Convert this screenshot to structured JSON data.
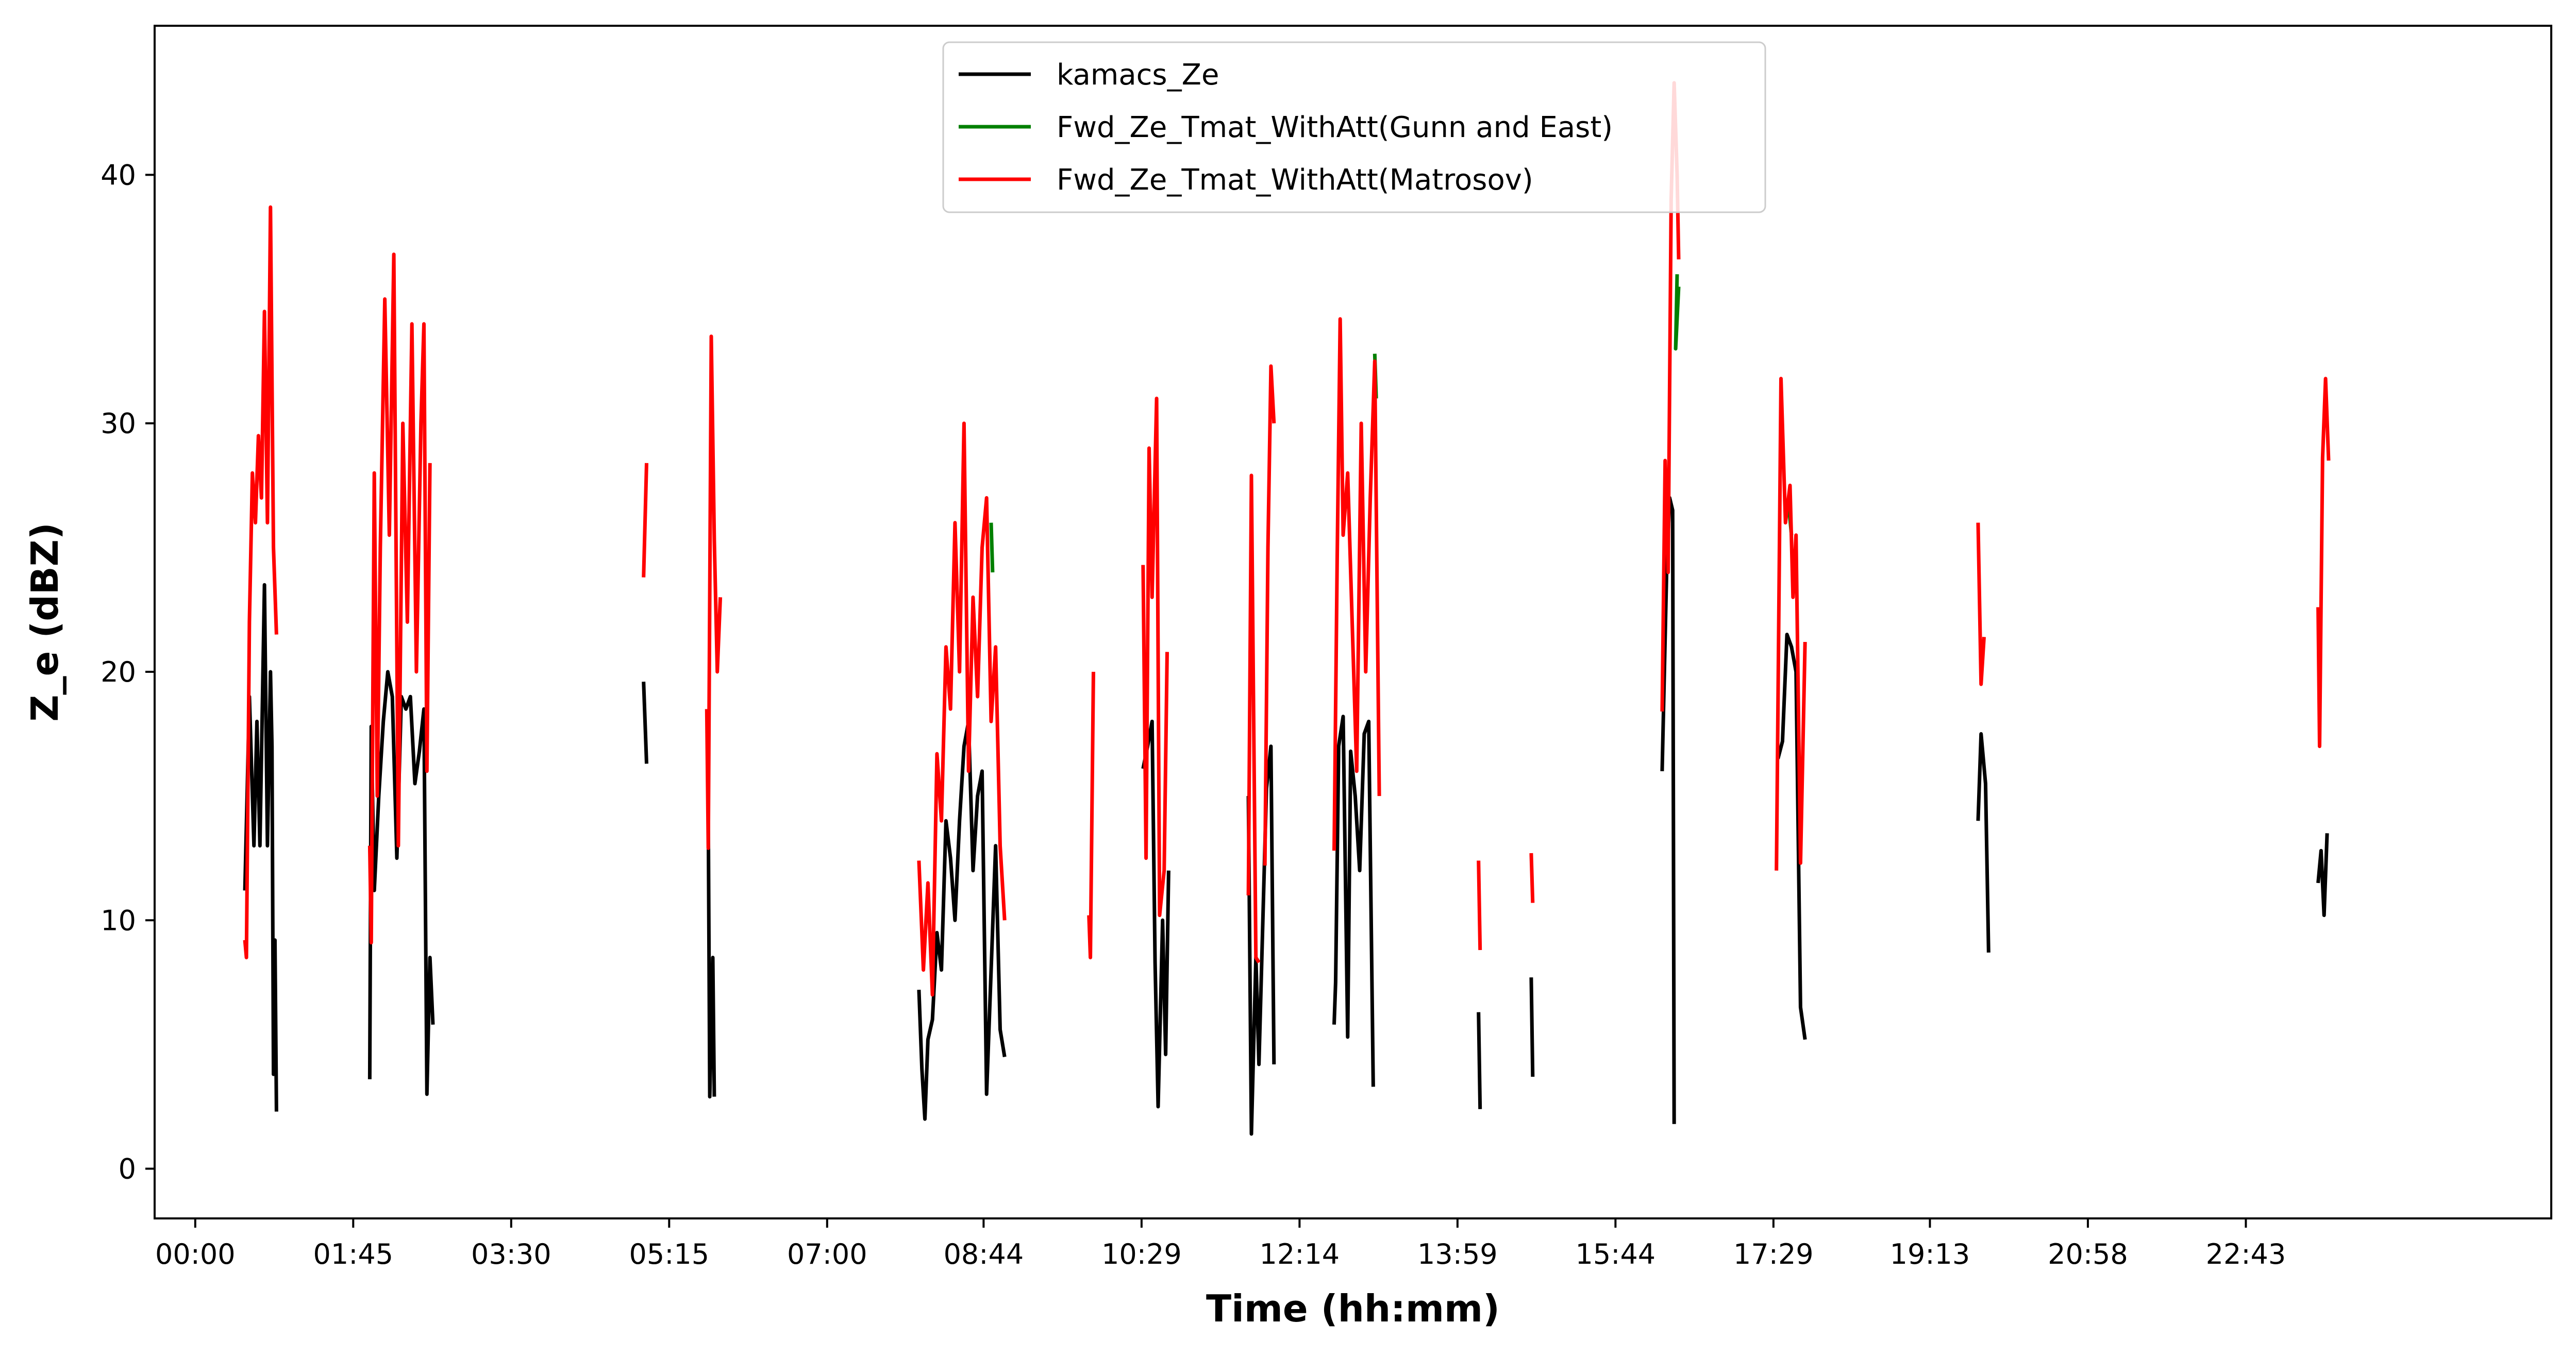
{
  "chart_data": {
    "type": "line",
    "title": "",
    "xlabel": "Time (hh:mm)",
    "ylabel": "Z_e (dBZ)",
    "xlim": [
      "-00:27",
      "26:06"
    ],
    "ylim": [
      -2,
      46
    ],
    "grid": false,
    "legend_position": "top-center",
    "x_ticks": [
      "00:00",
      "01:45",
      "03:30",
      "05:15",
      "07:00",
      "08:44",
      "10:29",
      "12:14",
      "13:59",
      "15:44",
      "17:29",
      "19:13",
      "20:58",
      "22:43"
    ],
    "y_ticks": [
      0,
      10,
      20,
      30,
      40
    ],
    "series": [
      {
        "name": "kamacs_Ze",
        "color": "#000000",
        "segments": [
          [
            [
              "00:33",
              11.2
            ],
            [
              "00:36",
              19
            ],
            [
              "00:39",
              13
            ],
            [
              "00:41",
              18
            ],
            [
              "00:43",
              13
            ],
            [
              "00:46",
              23.5
            ],
            [
              "00:48",
              13
            ],
            [
              "00:50",
              20
            ],
            [
              "00:51",
              17
            ],
            [
              "00:52",
              3.8
            ],
            [
              "00:53",
              9.2
            ],
            [
              "00:54",
              2.3
            ]
          ],
          [
            [
              "01:56",
              3.6
            ],
            [
              "01:57",
              17.8
            ],
            [
              "01:59",
              11.2
            ],
            [
              "02:02",
              15
            ],
            [
              "02:05",
              18
            ],
            [
              "02:08",
              20
            ],
            [
              "02:11",
              19
            ],
            [
              "02:14",
              12.5
            ],
            [
              "02:17",
              19
            ],
            [
              "02:20",
              18.5
            ],
            [
              "02:23",
              19
            ],
            [
              "02:26",
              15.5
            ],
            [
              "02:29",
              16.8
            ],
            [
              "02:32",
              18.5
            ],
            [
              "02:34",
              3
            ],
            [
              "02:36",
              8.5
            ],
            [
              "02:38",
              5.8
            ]
          ],
          [
            [
              "04:58",
              19.6
            ],
            [
              "05:00",
              16.3
            ]
          ],
          [
            [
              "05:41",
              14.3
            ],
            [
              "05:42",
              2.9
            ],
            [
              "05:44",
              8.5
            ],
            [
              "05:45",
              2.9
            ]
          ],
          [
            [
              "08:01",
              7.2
            ],
            [
              "08:03",
              4
            ],
            [
              "08:05",
              2
            ],
            [
              "08:07",
              5.2
            ],
            [
              "08:10",
              6
            ],
            [
              "08:13",
              9.5
            ],
            [
              "08:16",
              8
            ],
            [
              "08:19",
              14
            ],
            [
              "08:22",
              12.5
            ],
            [
              "08:25",
              10
            ],
            [
              "08:28",
              14
            ],
            [
              "08:31",
              17
            ],
            [
              "08:34",
              18
            ],
            [
              "08:37",
              12
            ],
            [
              "08:40",
              15
            ],
            [
              "08:43",
              16
            ],
            [
              "08:46",
              3
            ],
            [
              "08:49",
              8
            ],
            [
              "08:52",
              13
            ],
            [
              "08:55",
              5.6
            ],
            [
              "08:58",
              4.5
            ]
          ],
          [
            [
              "10:30",
              16.1
            ],
            [
              "10:33",
              17
            ],
            [
              "10:36",
              18
            ],
            [
              "10:38",
              8.3
            ],
            [
              "10:40",
              2.5
            ],
            [
              "10:43",
              10
            ],
            [
              "10:45",
              4.6
            ],
            [
              "10:47",
              12
            ]
          ],
          [
            [
              "11:40",
              15
            ],
            [
              "11:42",
              1.4
            ],
            [
              "11:45",
              8.5
            ],
            [
              "11:47",
              4.2
            ],
            [
              "11:52",
              15.3
            ],
            [
              "11:55",
              17
            ],
            [
              "11:57",
              4.2
            ]
          ],
          [
            [
              "12:37",
              5.8
            ],
            [
              "12:38",
              7.5
            ],
            [
              "12:40",
              17
            ],
            [
              "12:43",
              18.2
            ],
            [
              "12:46",
              5.3
            ],
            [
              "12:48",
              16.8
            ],
            [
              "12:51",
              15
            ],
            [
              "12:54",
              12
            ],
            [
              "12:57",
              17.5
            ],
            [
              "13:00",
              18
            ],
            [
              "13:03",
              3.3
            ]
          ],
          [
            [
              "14:13",
              6.3
            ],
            [
              "14:14",
              2.4
            ]
          ],
          [
            [
              "14:48",
              7.7
            ],
            [
              "14:49",
              3.7
            ]
          ],
          [
            [
              "16:15",
              16
            ],
            [
              "16:18",
              24
            ],
            [
              "16:20",
              27
            ],
            [
              "16:22",
              26.5
            ],
            [
              "16:23",
              1.8
            ]
          ],
          [
            [
              "17:32",
              16.5
            ],
            [
              "17:35",
              17.2
            ],
            [
              "17:38",
              21.5
            ],
            [
              "17:41",
              21
            ],
            [
              "17:44",
              20
            ],
            [
              "17:47",
              6.5
            ],
            [
              "17:50",
              5.2
            ]
          ],
          [
            [
              "19:45",
              14
            ],
            [
              "19:47",
              17.5
            ],
            [
              "19:50",
              15.5
            ],
            [
              "19:52",
              8.7
            ]
          ],
          [
            [
              "23:31",
              11.5
            ],
            [
              "23:33",
              12.8
            ],
            [
              "23:35",
              10.2
            ],
            [
              "23:37",
              13.5
            ]
          ]
        ]
      },
      {
        "name": "Fwd_Ze_Tmat_WithAtt(Gunn and East)",
        "color": "#008000",
        "segments": [
          [
            [
              "16:25",
              36
            ],
            [
              "16:24",
              33
            ],
            [
              "16:26",
              35.5
            ]
          ],
          [
            [
              "13:04",
              32.8
            ],
            [
              "13:05",
              31
            ]
          ],
          [
            [
              "08:49",
              26
            ],
            [
              "08:50",
              24
            ]
          ],
          [
            [
              "17:39",
              26.8
            ],
            [
              "17:41",
              25.5
            ]
          ]
        ]
      },
      {
        "name": "Fwd_Ze_Tmat_WithAtt(Matrosov)",
        "color": "#ff0000",
        "segments": [
          [
            [
              "00:33",
              9.2
            ],
            [
              "00:34",
              8.5
            ],
            [
              "00:36",
              22
            ],
            [
              "00:38",
              28
            ],
            [
              "00:40",
              26
            ],
            [
              "00:42",
              29.5
            ],
            [
              "00:44",
              27
            ],
            [
              "00:46",
              34.5
            ],
            [
              "00:48",
              26
            ],
            [
              "00:50",
              38.7
            ],
            [
              "00:52",
              25
            ],
            [
              "00:54",
              21.5
            ]
          ],
          [
            [
              "01:56",
              13
            ],
            [
              "01:57",
              9.1
            ],
            [
              "01:59",
              28
            ],
            [
              "02:01",
              15
            ],
            [
              "02:03",
              25
            ],
            [
              "02:06",
              35
            ],
            [
              "02:09",
              25.5
            ],
            [
              "02:12",
              36.8
            ],
            [
              "02:15",
              13
            ],
            [
              "02:18",
              30
            ],
            [
              "02:21",
              22
            ],
            [
              "02:24",
              34
            ],
            [
              "02:27",
              20
            ],
            [
              "02:30",
              30
            ],
            [
              "02:32",
              34
            ],
            [
              "02:34",
              16
            ],
            [
              "02:36",
              28.4
            ]
          ],
          [
            [
              "04:58",
              23.8
            ],
            [
              "05:00",
              28.4
            ]
          ],
          [
            [
              "05:40",
              18.5
            ],
            [
              "05:41",
              12.9
            ],
            [
              "05:43",
              33.5
            ],
            [
              "05:45",
              25.3
            ],
            [
              "05:47",
              20
            ],
            [
              "05:49",
              23
            ]
          ],
          [
            [
              "08:01",
              12.4
            ],
            [
              "08:04",
              8
            ],
            [
              "08:07",
              11.5
            ],
            [
              "08:10",
              7
            ],
            [
              "08:13",
              16.7
            ],
            [
              "08:16",
              14
            ],
            [
              "08:19",
              21
            ],
            [
              "08:22",
              18.5
            ],
            [
              "08:25",
              26
            ],
            [
              "08:28",
              20
            ],
            [
              "08:31",
              30
            ],
            [
              "08:34",
              16
            ],
            [
              "08:37",
              23
            ],
            [
              "08:40",
              19
            ],
            [
              "08:43",
              25
            ],
            [
              "08:46",
              27
            ],
            [
              "08:49",
              18
            ],
            [
              "08:52",
              21
            ],
            [
              "08:55",
              13
            ],
            [
              "08:58",
              10
            ]
          ],
          [
            [
              "09:54",
              10.2
            ],
            [
              "09:55",
              8.5
            ],
            [
              "09:57",
              20
            ]
          ],
          [
            [
              "10:30",
              24.3
            ],
            [
              "10:32",
              12.5
            ],
            [
              "10:34",
              29
            ],
            [
              "10:36",
              23
            ],
            [
              "10:39",
              31
            ],
            [
              "10:41",
              10.2
            ],
            [
              "10:44",
              12
            ],
            [
              "10:46",
              20.8
            ]
          ],
          [
            [
              "11:40",
              11
            ],
            [
              "11:42",
              27.9
            ],
            [
              "11:45",
              8.5
            ],
            [
              "11:47",
              8.3
            ]
          ],
          [
            [
              "11:51",
              12.2
            ],
            [
              "11:53",
              25
            ],
            [
              "11:55",
              32.3
            ],
            [
              "11:57",
              30
            ]
          ],
          [
            [
              "12:37",
              12.8
            ],
            [
              "12:39",
              24.5
            ],
            [
              "12:41",
              34.2
            ],
            [
              "12:43",
              25.5
            ],
            [
              "12:46",
              28
            ],
            [
              "12:49",
              22
            ],
            [
              "12:52",
              16
            ],
            [
              "12:55",
              30
            ],
            [
              "12:58",
              20
            ],
            [
              "13:01",
              27
            ],
            [
              "13:04",
              32.5
            ],
            [
              "13:07",
              15
            ]
          ],
          [
            [
              "14:13",
              12.4
            ],
            [
              "14:14",
              8.8
            ]
          ],
          [
            [
              "14:48",
              12.7
            ],
            [
              "14:49",
              10.7
            ]
          ],
          [
            [
              "16:15",
              18.4
            ],
            [
              "16:17",
              28.5
            ],
            [
              "16:19",
              24
            ],
            [
              "16:21",
              39
            ],
            [
              "16:23",
              43.7
            ],
            [
              "16:25",
              40
            ],
            [
              "16:26",
              36.6
            ]
          ],
          [
            [
              "17:31",
              12
            ],
            [
              "17:34",
              31.8
            ],
            [
              "17:37",
              26
            ],
            [
              "17:40",
              27.5
            ],
            [
              "17:42",
              23
            ],
            [
              "17:44",
              25.5
            ],
            [
              "17:47",
              12.3
            ],
            [
              "17:50",
              21.2
            ]
          ],
          [
            [
              "19:45",
              26
            ],
            [
              "19:47",
              19.5
            ],
            [
              "19:49",
              21.4
            ]
          ],
          [
            [
              "23:31",
              22.6
            ],
            [
              "23:32",
              17
            ],
            [
              "23:34",
              28.6
            ],
            [
              "23:36",
              31.8
            ],
            [
              "23:38",
              28.5
            ]
          ]
        ]
      }
    ]
  }
}
